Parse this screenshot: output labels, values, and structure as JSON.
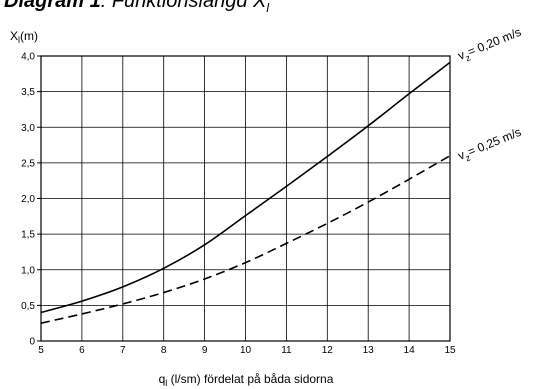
{
  "page": {
    "title_bold": "Diagram 1",
    "title_rest": ": Funktionslängd X",
    "title_sub": "l"
  },
  "chart_data": {
    "type": "line",
    "title": "Diagram 1: Funktionslängd Xl",
    "ylabel": "X",
    "ylabel_sub": "l",
    "ylabel_unit": "(m)",
    "xlabel": "q",
    "xlabel_sub": "l",
    "xlabel_rest": " (l/sm) fördelat på båda sidorna",
    "xlim": [
      5,
      15
    ],
    "ylim": [
      0,
      4.0
    ],
    "x_ticks": [
      "5",
      "6",
      "7",
      "8",
      "9",
      "10",
      "11",
      "12",
      "13",
      "14",
      "15"
    ],
    "y_ticks": [
      "0",
      "0,5",
      "1,0",
      "1,5",
      "2,0",
      "2,5",
      "3,0",
      "3,5",
      "4,0"
    ],
    "grid": true,
    "series": [
      {
        "name": "v",
        "name_sub": "z",
        "name_rest": "= 0,20 m/s",
        "style": "solid",
        "x": [
          5,
          6,
          7,
          8,
          9,
          10,
          11,
          12,
          13,
          14,
          15
        ],
        "values": [
          0.4,
          0.56,
          0.76,
          1.02,
          1.35,
          1.76,
          2.17,
          2.59,
          3.02,
          3.47,
          3.91
        ]
      },
      {
        "name": "v",
        "name_sub": "z",
        "name_rest": "= 0,25 m/s",
        "style": "dashed",
        "x": [
          5,
          6,
          7,
          8,
          9,
          10,
          11,
          12,
          13,
          14,
          15
        ],
        "values": [
          0.25,
          0.38,
          0.52,
          0.68,
          0.87,
          1.1,
          1.37,
          1.65,
          1.95,
          2.27,
          2.6
        ]
      }
    ]
  }
}
